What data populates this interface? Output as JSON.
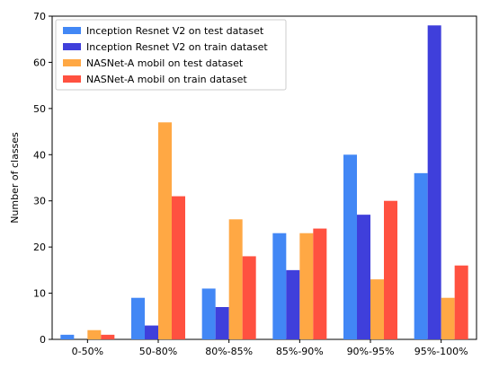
{
  "chart_data": {
    "type": "bar",
    "title": "",
    "xlabel": "",
    "ylabel": "Number of classes",
    "categories": [
      "0-50%",
      "50-80%",
      "80%-85%",
      "85%-90%",
      "90%-95%",
      "95%-100%"
    ],
    "ylim": [
      0,
      70
    ],
    "yticks": [
      0,
      10,
      20,
      30,
      40,
      50,
      60,
      70
    ],
    "grid": false,
    "legend_position": "top-left",
    "series": [
      {
        "name": "Inception Resnet V2 on test dataset",
        "color": "#4287f5",
        "values": [
          1,
          9,
          11,
          23,
          40,
          36
        ]
      },
      {
        "name": "Inception Resnet V2 on train dataset",
        "color": "#3f3fdb",
        "values": [
          0,
          3,
          7,
          15,
          27,
          68
        ]
      },
      {
        "name": "NASNet-A mobil on test dataset",
        "color": "#ffa844",
        "values": [
          2,
          47,
          26,
          23,
          13,
          9
        ]
      },
      {
        "name": "NASNet-A mobil on train dataset",
        "color": "#ff5140",
        "values": [
          1,
          31,
          18,
          24,
          30,
          16
        ]
      }
    ]
  }
}
